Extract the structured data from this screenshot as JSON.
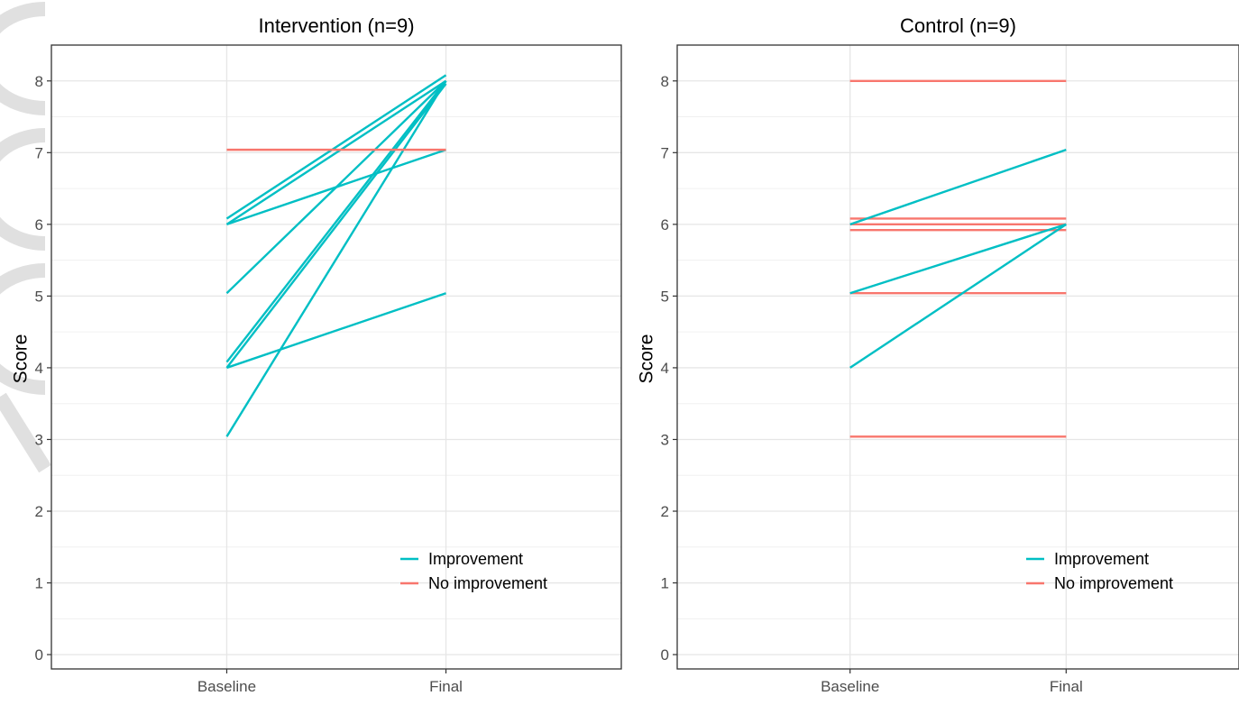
{
  "chart_data": [
    {
      "type": "line",
      "title": "Intervention (n=9)",
      "xlabel": "",
      "ylabel": "Score",
      "categories": [
        "Baseline",
        "Final"
      ],
      "ylim": [
        -0.2,
        8.5
      ],
      "yticks": [
        0,
        1,
        2,
        3,
        4,
        5,
        6,
        7,
        8
      ],
      "grid": true,
      "legend_position": "bottom-right",
      "legend": [
        {
          "label": "Improvement",
          "color": "#00BFC4"
        },
        {
          "label": "No improvement",
          "color": "#F8766D"
        }
      ],
      "series": [
        {
          "values": [
            6.08,
            8.08
          ],
          "group": "Improvement"
        },
        {
          "values": [
            6.0,
            8.0
          ],
          "group": "Improvement"
        },
        {
          "values": [
            6.0,
            7.04
          ],
          "group": "Improvement"
        },
        {
          "values": [
            5.04,
            8.0
          ],
          "group": "Improvement"
        },
        {
          "values": [
            4.08,
            8.0
          ],
          "group": "Improvement"
        },
        {
          "values": [
            4.0,
            7.96
          ],
          "group": "Improvement"
        },
        {
          "values": [
            4.0,
            5.04
          ],
          "group": "Improvement"
        },
        {
          "values": [
            3.04,
            8.0
          ],
          "group": "Improvement"
        },
        {
          "values": [
            7.04,
            7.04
          ],
          "group": "No improvement"
        }
      ]
    },
    {
      "type": "line",
      "title": "Control (n=9)",
      "xlabel": "",
      "ylabel": "Score",
      "categories": [
        "Baseline",
        "Final"
      ],
      "ylim": [
        -0.2,
        8.5
      ],
      "yticks": [
        0,
        1,
        2,
        3,
        4,
        5,
        6,
        7,
        8
      ],
      "grid": true,
      "legend_position": "bottom-right",
      "legend": [
        {
          "label": "Improvement",
          "color": "#00BFC4"
        },
        {
          "label": "No improvement",
          "color": "#F8766D"
        }
      ],
      "series": [
        {
          "values": [
            8.0,
            8.0
          ],
          "group": "No improvement"
        },
        {
          "values": [
            6.08,
            6.08
          ],
          "group": "No improvement"
        },
        {
          "values": [
            6.0,
            6.0
          ],
          "group": "No improvement"
        },
        {
          "values": [
            5.92,
            5.92
          ],
          "group": "No improvement"
        },
        {
          "values": [
            5.04,
            5.04
          ],
          "group": "No improvement"
        },
        {
          "values": [
            3.04,
            3.04
          ],
          "group": "No improvement"
        },
        {
          "values": [
            6.0,
            7.04
          ],
          "group": "Improvement"
        },
        {
          "values": [
            5.04,
            6.0
          ],
          "group": "Improvement"
        },
        {
          "values": [
            4.0,
            6.0
          ],
          "group": "Improvement"
        }
      ]
    }
  ]
}
